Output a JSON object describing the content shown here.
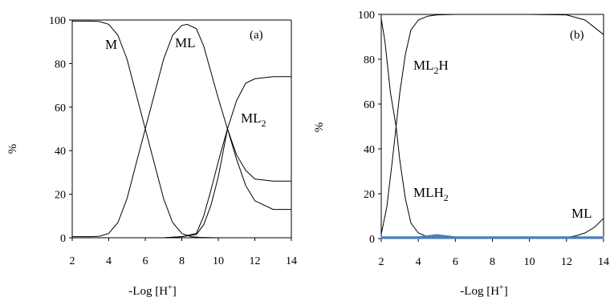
{
  "chart_data": [
    {
      "type": "line",
      "panel_label": "(a)",
      "xlabel": "-Log [H",
      "xlabel_sup": "+",
      "xlabel_close": "]",
      "ylabel": "%",
      "xlim": [
        2,
        14
      ],
      "ylim": [
        0,
        100
      ],
      "xticks": [
        2,
        4,
        6,
        8,
        10,
        12,
        14
      ],
      "yticks": [
        0,
        20,
        40,
        60,
        80,
        100
      ],
      "frame": "top-right",
      "series": [
        {
          "label_main": "M",
          "label_sub": "",
          "label_tail": "",
          "x": [
            2,
            3,
            3.5,
            4,
            4.5,
            5,
            5.5,
            6,
            6.5,
            7,
            7.5,
            8,
            8.5,
            9,
            10,
            12,
            14
          ],
          "y": [
            99.5,
            99.5,
            99.3,
            98,
            93,
            82,
            66,
            50,
            34,
            18,
            7,
            2,
            0.5,
            0.2,
            0,
            0,
            0
          ]
        },
        {
          "label_main": "ML",
          "label_sub": "",
          "label_tail": "",
          "x": [
            2,
            3,
            3.5,
            4,
            4.5,
            5,
            5.5,
            6,
            6.5,
            7,
            7.5,
            8,
            8.3,
            8.8,
            9.2,
            9.6,
            10,
            10.5,
            11,
            11.5,
            12,
            13,
            14
          ],
          "y": [
            0.5,
            0.5,
            0.7,
            2,
            7,
            18,
            34,
            50,
            66,
            82,
            93,
            97.5,
            98,
            96,
            88,
            76,
            64,
            50,
            36,
            24,
            17,
            13,
            13
          ]
        },
        {
          "label_main": "ML",
          "label_sub": "2",
          "label_tail": "",
          "x": [
            2,
            7,
            8,
            8.8,
            9.2,
            9.6,
            10,
            10.5,
            11,
            11.5,
            12,
            13,
            14
          ],
          "y": [
            0,
            0,
            0.5,
            1.5,
            6,
            15,
            28,
            50,
            63,
            71,
            73,
            74,
            74
          ]
        },
        {
          "label_main": "",
          "label_sub": "",
          "label_tail": "",
          "x": [
            2,
            7,
            8,
            8.8,
            9.2,
            9.6,
            10,
            10.5,
            11,
            11.5,
            12,
            13,
            14
          ],
          "y": [
            0,
            0,
            0.5,
            2,
            10,
            22,
            35,
            50,
            38,
            31,
            27,
            26,
            26
          ]
        }
      ]
    },
    {
      "type": "line",
      "panel_label": "(b)",
      "xlabel": "-Log [H",
      "xlabel_sup": "+",
      "xlabel_close": "]",
      "ylabel": "%",
      "xlim": [
        2,
        14
      ],
      "ylim": [
        0,
        100
      ],
      "xticks": [
        2,
        4,
        6,
        8,
        10,
        12,
        14
      ],
      "yticks": [
        0,
        20,
        40,
        60,
        80,
        100
      ],
      "frame": "full",
      "series": [
        {
          "label_main": "ML",
          "label_sub": "2",
          "label_tail": "H",
          "x": [
            2,
            2.3,
            2.6,
            2.8,
            3,
            3.3,
            3.6,
            4,
            4.5,
            5,
            6,
            8,
            10,
            12,
            13,
            14
          ],
          "y": [
            2,
            14,
            35,
            50,
            65,
            82,
            93,
            97.5,
            99.2,
            99.8,
            100,
            100,
            100,
            99.8,
            97.5,
            91
          ]
        },
        {
          "label_main": "MLH",
          "label_sub": "2",
          "label_tail": "",
          "x": [
            2,
            2.2,
            2.5,
            2.8,
            3,
            3.3,
            3.6,
            4,
            4.5,
            5,
            6
          ],
          "y": [
            98,
            88,
            65,
            50,
            35,
            18,
            7,
            2.5,
            0.8,
            0.2,
            0
          ]
        },
        {
          "label_main": "ML",
          "label_sub": "",
          "label_tail": "",
          "x": [
            2,
            8,
            10,
            11,
            12,
            12.5,
            13,
            13.5,
            14
          ],
          "y": [
            0,
            0,
            0,
            0.1,
            0.5,
            1.2,
            2.5,
            5,
            9
          ]
        },
        {
          "label_main": "",
          "label_sub": "",
          "label_tail": "",
          "x": [
            2,
            4,
            4.5,
            5,
            5.5,
            6,
            8,
            14
          ],
          "y": [
            0.8,
            0.8,
            1.3,
            1.8,
            1.3,
            0.8,
            0.8,
            0.8
          ],
          "color": "#4a7ebb",
          "fill": true
        }
      ]
    }
  ]
}
